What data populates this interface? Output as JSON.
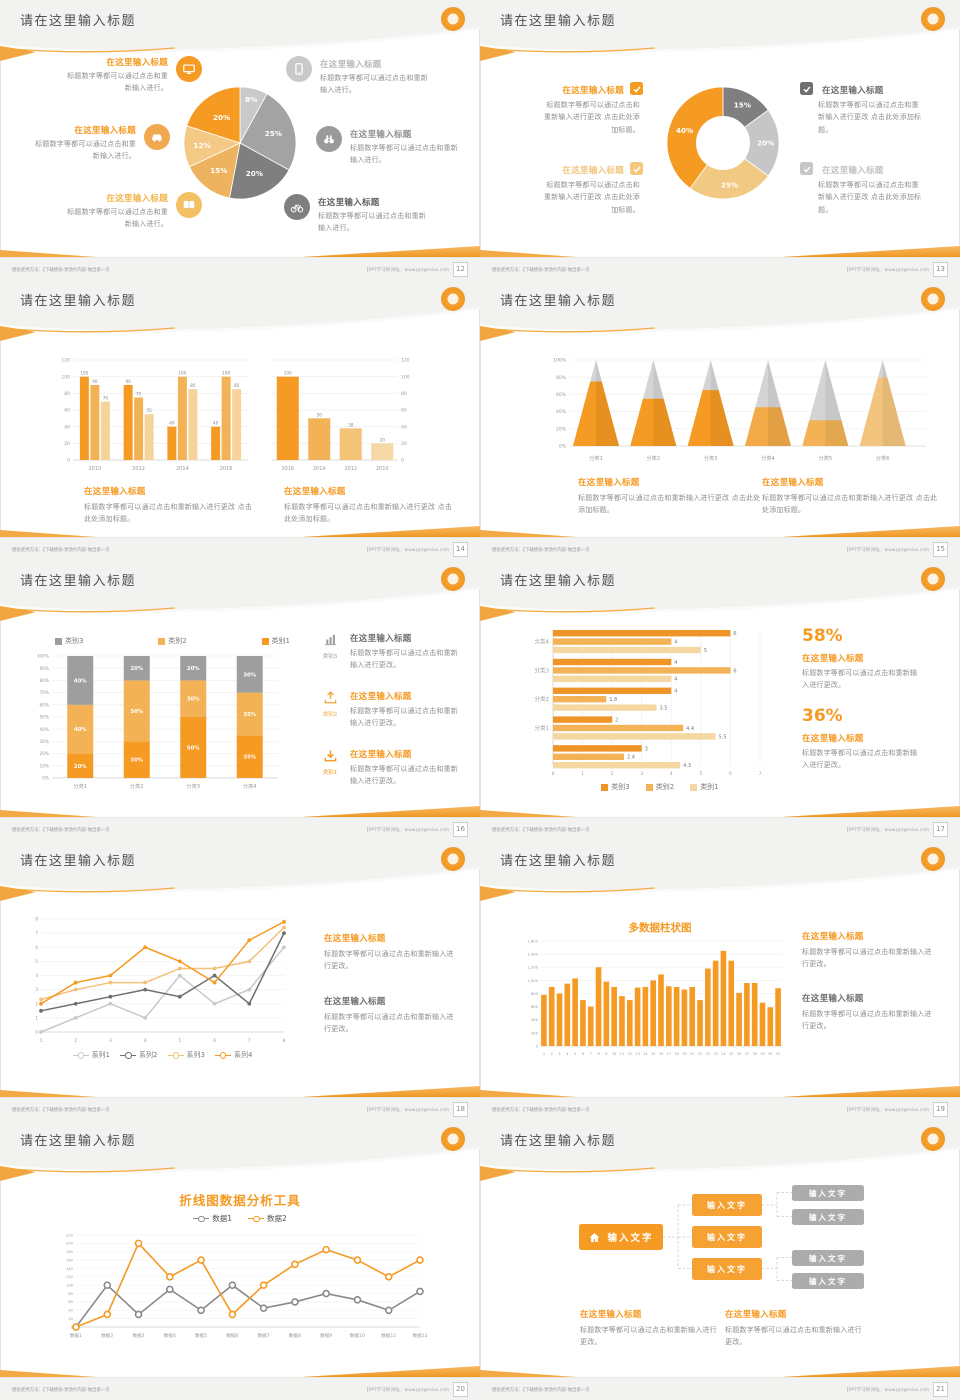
{
  "common": {
    "slide_title": "请在这里输入标题",
    "heading": "在这里输入标题",
    "body_short": "标题数字等都可以通过点击和重新输入进行。",
    "body_long": "标题数字等都可以通过点击和重新输入进行更改 点击此处添加标题。",
    "body_mid": "标题数字等都可以通过点击和重新输入进行更改。",
    "footer_left": "模板使用方法：【下载模板-更改片内容-做出第一页",
    "footer_right": "【PPT学习网 网址：www.pptgenius.com"
  },
  "colors": {
    "accent_orange": "#f59a23",
    "orange_mid": "#f2b255",
    "orange_light": "#f5d39b",
    "gray_dark": "#7f7f7f",
    "gray_mid": "#9e9e9e",
    "gray_light": "#c9c9c9",
    "title_text": "#4f4f4f",
    "body_text": "#8f8f8f"
  },
  "slides": [
    {
      "page": "12",
      "chart_data": {
        "type": "pie",
        "values": [
          8,
          25,
          20,
          15,
          12,
          20
        ],
        "labels": [
          "8%",
          "25%",
          "20%",
          "15%",
          "12%",
          "20%"
        ],
        "colors": [
          "#c9c9c9",
          "#a3a3a3",
          "#7f7f7f",
          "#eeb35e",
          "#f4c985",
          "#f59a23"
        ]
      },
      "left": [
        {
          "heading": "在这里输入标题",
          "body": "标题数字等都可以通过点击和重新输入进行。",
          "icon": "monitor"
        },
        {
          "heading": "在这里输入标题",
          "body": "标题数字等都可以通过点击和重新输入进行。",
          "icon": "car"
        },
        {
          "heading": "在这里输入标题",
          "body": "标题数字等都可以通过点击和重新输入进行。",
          "icon": "book"
        }
      ],
      "right": [
        {
          "heading": "在这里输入标题",
          "body": "标题数字等都可以通过点击和重新输入进行。",
          "icon": "phone"
        },
        {
          "heading": "在这里输入标题",
          "body": "标题数字等都可以通过点击和重新输入进行。",
          "icon": "binoculars"
        },
        {
          "heading": "在这里输入标题",
          "body": "标题数字等都可以通过点击和重新输入进行。",
          "icon": "bicycle"
        }
      ]
    },
    {
      "page": "13",
      "chart_data": {
        "type": "donut",
        "values": [
          15,
          20,
          25,
          40
        ],
        "labels": [
          "15%",
          "20%",
          "25%",
          "40%"
        ],
        "colors": [
          "#7f7f7f",
          "#c6c6c6",
          "#f2c983",
          "#f59a23"
        ]
      },
      "left": [
        {
          "heading": "在这里输入标题",
          "body": "标题数字等都可以通过点击和重新输入进行更改 点击此处添加标题。"
        },
        {
          "heading": "在这里输入标题",
          "body": "标题数字等都可以通过点击和重新输入进行更改 点击此处添加标题。"
        }
      ],
      "right": [
        {
          "heading": "在这里输入标题",
          "body": "标题数字等都可以通过点击和重新输入进行更改 点击此处添加标题。"
        },
        {
          "heading": "在这里输入标题",
          "body": "标题数字等都可以通过点击和重新输入进行更改 点击此处添加标题。"
        }
      ]
    },
    {
      "page": "14",
      "chart_a": {
        "type": "bar",
        "categories": [
          "2010",
          "2012",
          "2014",
          "2016"
        ],
        "series": [
          {
            "name": "系列1",
            "color": "#f59a23",
            "values": [
              100,
              90,
              40,
              40
            ]
          },
          {
            "name": "系列2",
            "color": "#f2b255",
            "values": [
              90,
              75,
              100,
              100
            ]
          },
          {
            "name": "系列3",
            "color": "#f6d39b",
            "values": [
              70,
              55,
              85,
              85
            ]
          }
        ],
        "ylim": [
          0,
          120
        ],
        "ystep": 20
      },
      "chart_b": {
        "type": "bar-single",
        "categories": [
          "2016",
          "2014",
          "2012",
          "2010"
        ],
        "values": [
          100,
          50,
          38,
          20
        ],
        "colors": [
          "#f59a23",
          "#f2b255",
          "#f4c377",
          "#f6d8a4"
        ],
        "ylim": [
          0,
          120
        ],
        "ystep": 20
      },
      "blocks": [
        {
          "heading": "在这里输入标题",
          "body": "标题数字等都可以通过点击和重新输入进行更改 点击此处添加标题。"
        },
        {
          "heading": "在这里输入标题",
          "body": "标题数字等都可以通过点击和重新输入进行更改 点击此处添加标题。"
        }
      ]
    },
    {
      "page": "15",
      "chart_data": {
        "type": "pyramid",
        "categories": [
          "分类1",
          "分类2",
          "分类3",
          "分类4",
          "分类5",
          "分类6"
        ],
        "fill_percent": [
          75,
          55,
          65,
          45,
          30,
          80
        ],
        "body_colors": [
          "#f59a23",
          "#f59a23",
          "#f59a23",
          "#f2a948",
          "#f2b255",
          "#f3c47d"
        ],
        "cap_color": "#d4d4d4",
        "ylim": [
          0,
          100
        ],
        "ystep": 20
      },
      "blocks": [
        {
          "heading": "在这里输入标题",
          "body": "标题数字等都可以通过点击和重新输入进行更改 点击此处添加标题。"
        },
        {
          "heading": "在这里输入标题",
          "body": "标题数字等都可以通过点击和重新输入进行更改 点击此处添加标题。"
        }
      ]
    },
    {
      "page": "16",
      "chart_data": {
        "type": "stacked",
        "categories": [
          "分类1",
          "分类2",
          "分类3",
          "分类4"
        ],
        "series": [
          {
            "name": "类别1",
            "color": "#f59a23",
            "values": [
              20,
              30,
              50,
              35
            ]
          },
          {
            "name": "类别2",
            "color": "#f2b255",
            "values": [
              40,
              50,
              30,
              35
            ]
          },
          {
            "name": "类别3",
            "color": "#9e9e9e",
            "values": [
              40,
              20,
              20,
              30
            ]
          }
        ],
        "ylim": [
          0,
          100
        ],
        "ystep": 10
      },
      "legend": [
        "类别3",
        "类别2",
        "类别1"
      ],
      "items": [
        {
          "label": "类别3",
          "heading": "在这里输入标题",
          "body": "标题数字等都可以通过点击和重新输入进行更改。",
          "icon": "bar-chart"
        },
        {
          "label": "类别2",
          "heading": "在这里输入标题",
          "body": "标题数字等都可以通过点击和重新输入进行更改。",
          "icon": "upload"
        },
        {
          "label": "类别1",
          "heading": "在这里输入标题",
          "body": "标题数字等都可以通过点击和重新输入进行更改。",
          "icon": "download"
        }
      ]
    },
    {
      "page": "17",
      "chart_data": {
        "type": "hbar",
        "groups": [
          "分类4",
          "分类3",
          "分类2",
          "分类1",
          ""
        ],
        "series_names": [
          "类别3",
          "类别2",
          "类别1"
        ],
        "colors": [
          "#ef9426",
          "#f2b255",
          "#f5d7a1"
        ],
        "values": [
          [
            6,
            4,
            5
          ],
          [
            4,
            6,
            4
          ],
          [
            4,
            1.8,
            3.5
          ],
          [
            2,
            4.4,
            5.5
          ],
          [
            3,
            2.4,
            4.3
          ]
        ],
        "xlim": [
          0,
          7
        ]
      },
      "stats": [
        {
          "pct": "58%",
          "heading": "在这里输入标题",
          "body": "标题数字等都可以通过点击和重新输入进行更改。"
        },
        {
          "pct": "36%",
          "heading": "在这里输入标题",
          "body": "标题数字等都可以通过点击和重新输入进行更改。"
        }
      ]
    },
    {
      "page": "18",
      "chart_data": {
        "type": "line",
        "x": [
          "1",
          "2",
          "3",
          "4",
          "5",
          "6",
          "7",
          "8"
        ],
        "ylim": [
          0,
          8
        ],
        "ystep": 1,
        "series": [
          {
            "name": "系列1",
            "color": "#c9c9c9",
            "values": [
              0,
              1,
              2,
              1,
              4,
              2,
              3,
              6
            ]
          },
          {
            "name": "系列2",
            "color": "#6f6f6f",
            "values": [
              1.5,
              2,
              2.5,
              3,
              2.5,
              4,
              2,
              7
            ]
          },
          {
            "name": "系列3",
            "color": "#f2c178",
            "values": [
              2.3,
              3,
              3.5,
              3.5,
              4.5,
              4.5,
              5,
              7.4
            ]
          },
          {
            "name": "系列4",
            "color": "#f59a23",
            "values": [
              2,
              3.5,
              4,
              6,
              5,
              3.5,
              6.5,
              7.8
            ]
          }
        ]
      },
      "blocks": [
        {
          "heading": "在这里输入标题",
          "body": "标题数字等都可以通过点击和重新输入进行更改。"
        },
        {
          "heading": "在这里输入标题",
          "body": "标题数字等都可以通过点击和重新输入进行更改。"
        }
      ]
    },
    {
      "page": "19",
      "chart_title": "多数据柱状图",
      "chart_data": {
        "type": "column",
        "color": "#f59a23",
        "ylim": [
          0,
          1600
        ],
        "ystep": 200,
        "values": [
          780,
          900,
          800,
          950,
          1030,
          700,
          600,
          1200,
          980,
          900,
          760,
          700,
          890,
          900,
          1000,
          1090,
          910,
          900,
          860,
          900,
          700,
          1180,
          1300,
          1450,
          1300,
          810,
          960,
          960,
          660,
          590,
          880
        ]
      },
      "blocks": [
        {
          "heading": "在这里输入标题",
          "body": "标题数字等都可以通过点击和重新输入进行更改。"
        },
        {
          "heading": "在这里输入标题",
          "body": "标题数字等都可以通过点击和重新输入进行更改。"
        }
      ]
    },
    {
      "page": "20",
      "chart_title": "折线图数据分析工具",
      "chart_data": {
        "type": "line2",
        "x": [
          "数据1",
          "数据2",
          "数据3",
          "数据4",
          "数据5",
          "数据6",
          "数据7",
          "数据8",
          "数据9",
          "数据10",
          "数据11",
          "数据12"
        ],
        "ylim": [
          0,
          220
        ],
        "ystep": 20,
        "series": [
          {
            "name": "数据1",
            "color": "#8a8a8a",
            "values": [
              0,
              100,
              30,
              90,
              40,
              100,
              45,
              60,
              80,
              65,
              40,
              85
            ]
          },
          {
            "name": "数据2",
            "color": "#f59a23",
            "values": [
              0,
              30,
              200,
              120,
              160,
              30,
              100,
              150,
              185,
              160,
              120,
              160
            ]
          }
        ]
      }
    },
    {
      "page": "21",
      "nodes": {
        "root": "输入文字",
        "mid": [
          "输入文字",
          "输入文字",
          "输入文字"
        ],
        "leaf": [
          "输入文字",
          "输入文字",
          "输入文字",
          "输入文字"
        ]
      },
      "blocks": [
        {
          "heading": "在这里输入标题",
          "body": "标题数字等都可以通过点击和重新输入进行更改。"
        },
        {
          "heading": "在这里输入标题",
          "body": "标题数字等都可以通过点击和重新输入进行更改。"
        }
      ]
    }
  ]
}
